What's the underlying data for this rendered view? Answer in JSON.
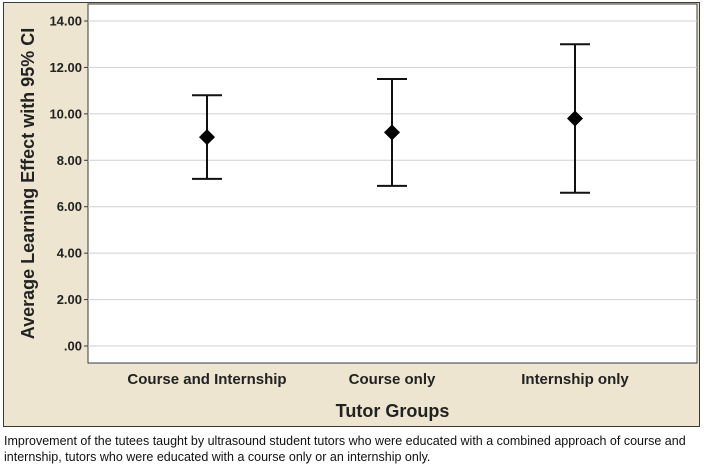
{
  "chart_data": {
    "type": "errorbar",
    "title": "",
    "xlabel": "Tutor Groups",
    "ylabel": "Average Learning Effect with 95% CI",
    "ylim": [
      0,
      14
    ],
    "yticks": [
      ".00",
      "2.00",
      "4.00",
      "6.00",
      "8.00",
      "10.00",
      "12.00",
      "14.00"
    ],
    "ytick_values": [
      0,
      2,
      4,
      6,
      8,
      10,
      12,
      14
    ],
    "categories": [
      "Course and Internship",
      "Course only",
      "Internship only"
    ],
    "means": [
      9.0,
      9.2,
      9.8
    ],
    "ci_lower": [
      7.2,
      6.9,
      6.6
    ],
    "ci_upper": [
      10.8,
      11.5,
      13.0
    ],
    "grid": true,
    "legend": "none"
  },
  "caption": "Improvement of the tutees taught by ultrasound student tutors who were educated with a combined approach of course and internship, tutors who were educated with a course only or an internship only.",
  "colors": {
    "panel_background": "#ede5cf",
    "plot_background": "#ffffff",
    "gridline": "#d0d0d0",
    "marker": "#000000"
  }
}
